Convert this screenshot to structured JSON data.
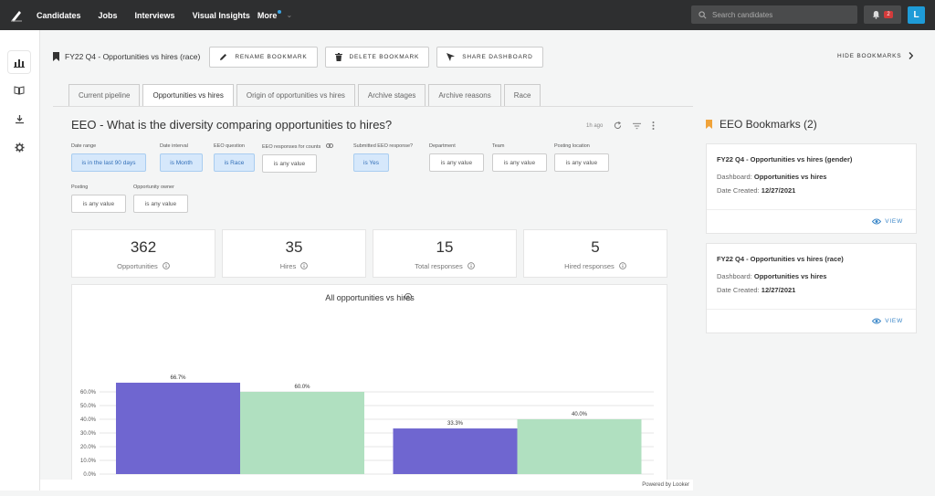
{
  "nav": {
    "items": [
      "Candidates",
      "Jobs",
      "Interviews",
      "Visual Insights",
      "More"
    ],
    "search_placeholder": "Search candidates",
    "notifications": "2",
    "avatar": "L"
  },
  "bookmark_bar": {
    "title": "FY22 Q4 - Opportunities vs hires (race)",
    "rename": "RENAME BOOKMARK",
    "delete": "DELETE BOOKMARK",
    "share": "SHARE DASHBOARD",
    "hide": "HIDE BOOKMARKS"
  },
  "tabs": [
    "Current pipeline",
    "Opportunities vs hires",
    "Origin of opportunities vs hires",
    "Archive stages",
    "Archive reasons",
    "Race"
  ],
  "active_tab": 1,
  "dashboard": {
    "title": "EEO - What is the diversity comparing opportunities to hires?",
    "updated": "1h ago"
  },
  "filters": [
    {
      "label": "Date range",
      "value": "is in the last 90 days",
      "selected": true
    },
    {
      "label": "Date interval",
      "value": "is Month",
      "selected": true
    },
    {
      "label": "EEO question",
      "value": "is Race",
      "selected": true
    },
    {
      "label": "EEO responses for counts",
      "value": "is any value",
      "selected": false
    },
    {
      "label": "Submitted EEO response?",
      "value": "is Yes",
      "selected": true
    },
    {
      "label": "Department",
      "value": "is any value",
      "selected": false
    },
    {
      "label": "Team",
      "value": "is any value",
      "selected": false
    },
    {
      "label": "Posting location",
      "value": "is any value",
      "selected": false
    },
    {
      "label": "Posting",
      "value": "is any value",
      "selected": false
    },
    {
      "label": "Opportunity owner",
      "value": "is any value",
      "selected": false
    }
  ],
  "kpis": [
    {
      "value": "362",
      "label": "Opportunities"
    },
    {
      "value": "35",
      "label": "Hires"
    },
    {
      "value": "15",
      "label": "Total responses"
    },
    {
      "value": "5",
      "label": "Hired responses"
    }
  ],
  "chart_data": {
    "type": "bar",
    "title": "All opportunities vs hires",
    "categories": [
      "",
      ""
    ],
    "series": [
      {
        "values": [
          66.7,
          33.3
        ],
        "color": "#6f66d0"
      },
      {
        "values": [
          60.0,
          40.0
        ],
        "color": "#b0e0c0"
      }
    ],
    "data_labels": [
      [
        "66.7%",
        "33.3%"
      ],
      [
        "60.0%",
        "40.0%"
      ]
    ],
    "yticks": [
      "0.0%",
      "10.0%",
      "20.0%",
      "30.0%",
      "40.0%",
      "50.0%",
      "60.0%"
    ],
    "ylim": [
      0,
      72
    ],
    "grid": true
  },
  "footer": {
    "powered": "Powered by Looker"
  },
  "right_panel": {
    "title": "EEO Bookmarks (2)",
    "dash_label": "Dashboard:",
    "date_label": "Date Created:",
    "view": "VIEW",
    "cards": [
      {
        "title": "FY22 Q4 - Opportunities vs hires (gender)",
        "dashboard": "Opportunities vs hires",
        "date": "12/27/2021"
      },
      {
        "title": "FY22 Q4 - Opportunities vs hires (race)",
        "dashboard": "Opportunities vs hires",
        "date": "12/27/2021"
      }
    ]
  },
  "colors": {
    "topbar": "#2e2f30",
    "accent": "#1e9bd7",
    "bookmark": "#f0a33a",
    "bar1": "#6f66d0",
    "bar2": "#b0e0c0"
  }
}
